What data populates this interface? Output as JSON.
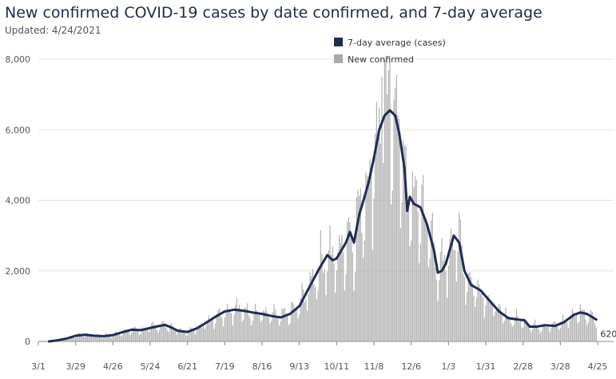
{
  "header": {
    "title": "New confirmed COVID-19 cases by date confirmed, and 7-day average",
    "subtitle": "Updated: 4/24/2021"
  },
  "colors": {
    "avg_line": "#1f2d52",
    "bars": "#a9a9a9",
    "grid": "#e4e4e4",
    "axis": "#888888",
    "text": "#555555"
  },
  "chart_data": {
    "type": "bar",
    "title": "New confirmed COVID-19 cases by date confirmed, and 7-day average",
    "subtitle": "Updated: 4/24/2021",
    "xlabel": "",
    "ylabel": "",
    "ylim": [
      0,
      8000
    ],
    "yticks": [
      0,
      2000,
      4000,
      6000,
      8000
    ],
    "ytick_labels": [
      "0",
      "2,000",
      "4,000",
      "6,000",
      "8,000"
    ],
    "x_tick_labels": [
      "3/1",
      "3/29",
      "4/26",
      "5/24",
      "6/21",
      "7/19",
      "8/16",
      "9/13",
      "10/11",
      "11/8",
      "12/6",
      "1/3",
      "1/31",
      "2/28",
      "3/28",
      "4/25"
    ],
    "x_tick_dates": [
      "2020-03-01",
      "2020-03-29",
      "2020-04-26",
      "2020-05-24",
      "2020-06-21",
      "2020-07-19",
      "2020-08-16",
      "2020-09-13",
      "2020-10-11",
      "2020-11-08",
      "2020-12-06",
      "2021-01-03",
      "2021-01-31",
      "2021-02-28",
      "2021-03-28",
      "2021-04-25"
    ],
    "grid": true,
    "legend_position": "top-center",
    "series": [
      {
        "name": "7-day average (cases)",
        "type": "line",
        "color": "#1f2d52",
        "points": [
          [
            "2020-03-09",
            0
          ],
          [
            "2020-03-15",
            30
          ],
          [
            "2020-03-22",
            80
          ],
          [
            "2020-03-29",
            160
          ],
          [
            "2020-04-05",
            190
          ],
          [
            "2020-04-12",
            160
          ],
          [
            "2020-04-19",
            150
          ],
          [
            "2020-04-26",
            180
          ],
          [
            "2020-05-03",
            260
          ],
          [
            "2020-05-10",
            330
          ],
          [
            "2020-05-17",
            320
          ],
          [
            "2020-05-24",
            380
          ],
          [
            "2020-05-31",
            440
          ],
          [
            "2020-06-04",
            470
          ],
          [
            "2020-06-08",
            410
          ],
          [
            "2020-06-14",
            300
          ],
          [
            "2020-06-21",
            270
          ],
          [
            "2020-06-28",
            370
          ],
          [
            "2020-07-05",
            530
          ],
          [
            "2020-07-12",
            700
          ],
          [
            "2020-07-19",
            850
          ],
          [
            "2020-07-26",
            900
          ],
          [
            "2020-08-02",
            870
          ],
          [
            "2020-08-09",
            820
          ],
          [
            "2020-08-16",
            780
          ],
          [
            "2020-08-23",
            720
          ],
          [
            "2020-08-30",
            680
          ],
          [
            "2020-09-06",
            780
          ],
          [
            "2020-09-13",
            1000
          ],
          [
            "2020-09-20",
            1500
          ],
          [
            "2020-09-27",
            2000
          ],
          [
            "2020-10-04",
            2450
          ],
          [
            "2020-10-08",
            2300
          ],
          [
            "2020-10-11",
            2350
          ],
          [
            "2020-10-18",
            2800
          ],
          [
            "2020-10-21",
            3100
          ],
          [
            "2020-10-24",
            2800
          ],
          [
            "2020-10-28",
            3600
          ],
          [
            "2020-11-01",
            4100
          ],
          [
            "2020-11-04",
            4500
          ],
          [
            "2020-11-08",
            5200
          ],
          [
            "2020-11-12",
            6000
          ],
          [
            "2020-11-16",
            6400
          ],
          [
            "2020-11-20",
            6550
          ],
          [
            "2020-11-24",
            6400
          ],
          [
            "2020-11-27",
            5900
          ],
          [
            "2020-12-01",
            4900
          ],
          [
            "2020-12-03",
            3700
          ],
          [
            "2020-12-05",
            4100
          ],
          [
            "2020-12-08",
            3900
          ],
          [
            "2020-12-13",
            3800
          ],
          [
            "2020-12-18",
            3300
          ],
          [
            "2020-12-23",
            2600
          ],
          [
            "2020-12-26",
            1950
          ],
          [
            "2020-12-29",
            2000
          ],
          [
            "2021-01-01",
            2200
          ],
          [
            "2021-01-04",
            2600
          ],
          [
            "2021-01-07",
            3000
          ],
          [
            "2021-01-11",
            2800
          ],
          [
            "2021-01-15",
            2000
          ],
          [
            "2021-01-20",
            1600
          ],
          [
            "2021-01-27",
            1450
          ],
          [
            "2021-02-03",
            1150
          ],
          [
            "2021-02-10",
            850
          ],
          [
            "2021-02-17",
            660
          ],
          [
            "2021-02-24",
            620
          ],
          [
            "2021-03-01",
            600
          ],
          [
            "2021-03-05",
            420
          ],
          [
            "2021-03-10",
            420
          ],
          [
            "2021-03-17",
            460
          ],
          [
            "2021-03-24",
            440
          ],
          [
            "2021-03-31",
            550
          ],
          [
            "2021-04-07",
            750
          ],
          [
            "2021-04-12",
            820
          ],
          [
            "2021-04-17",
            780
          ],
          [
            "2021-04-24",
            620
          ]
        ]
      },
      {
        "name": "New confirmed",
        "type": "bar",
        "color": "#a9a9a9",
        "note_values": "daily bars fluctuate around the 7-day average; peak near 8,000 around 11/20"
      }
    ],
    "annotations": [
      {
        "text": "620",
        "date": "2021-04-24",
        "value": 620
      }
    ]
  }
}
